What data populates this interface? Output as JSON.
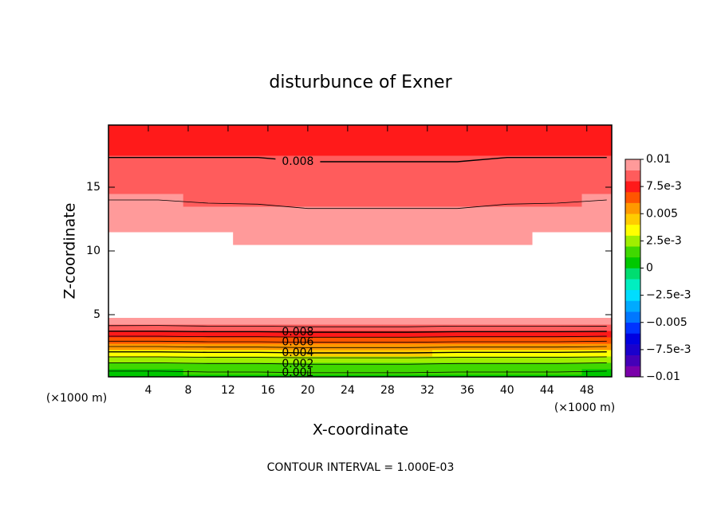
{
  "chart_data": {
    "type": "contour",
    "title": "disturbunce of Exner",
    "xlabel": "X-coordinate",
    "ylabel": "Z-coordinate",
    "x_unit_left": "(×1000 m)",
    "x_unit_right": "(×1000 m)",
    "footer": "CONTOUR INTERVAL = 1.000E-03",
    "xlim": [
      0,
      50.5
    ],
    "ylim": [
      0.125,
      19.875
    ],
    "xticks": [
      4,
      8,
      12,
      16,
      20,
      24,
      28,
      32,
      36,
      40,
      44,
      48
    ],
    "yticks": [
      5,
      10,
      15
    ],
    "x": [
      0,
      5,
      10,
      15,
      20,
      25,
      30,
      35,
      40,
      45,
      50
    ],
    "y": [
      0.125,
      0.5,
      1,
      1.5,
      2,
      2.5,
      3,
      3.5,
      4,
      4.5,
      5,
      7,
      9,
      10,
      11,
      12,
      13,
      14,
      15,
      16,
      17,
      18,
      19,
      19.875
    ],
    "values": [
      [
        0.0003,
        0.0003,
        0.0003,
        0.0004,
        0.0004,
        0.0004,
        0.0004,
        0.0003,
        0.0003,
        0.0003,
        0.0003
      ],
      [
        0.0009,
        0.0009,
        0.001,
        0.001,
        0.0011,
        0.0011,
        0.0011,
        0.001,
        0.001,
        0.001,
        0.0009
      ],
      [
        0.0016,
        0.0016,
        0.0017,
        0.0017,
        0.0018,
        0.0018,
        0.0018,
        0.0017,
        0.0017,
        0.0017,
        0.0016
      ],
      [
        0.0025,
        0.0025,
        0.0026,
        0.0026,
        0.0027,
        0.0027,
        0.0027,
        0.0026,
        0.0026,
        0.0026,
        0.0025
      ],
      [
        0.0038,
        0.0038,
        0.0039,
        0.0039,
        0.004,
        0.004,
        0.004,
        0.0039,
        0.0039,
        0.0039,
        0.0038
      ],
      [
        0.005,
        0.005,
        0.0051,
        0.0051,
        0.0052,
        0.0052,
        0.0052,
        0.0051,
        0.0051,
        0.0051,
        0.005
      ],
      [
        0.0062,
        0.0062,
        0.0063,
        0.0063,
        0.0064,
        0.0064,
        0.0064,
        0.0063,
        0.0063,
        0.0063,
        0.0062
      ],
      [
        0.0075,
        0.0075,
        0.0076,
        0.0076,
        0.0077,
        0.0077,
        0.0077,
        0.0076,
        0.0076,
        0.0076,
        0.0075
      ],
      [
        0.0087,
        0.0087,
        0.0088,
        0.0088,
        0.0089,
        0.0089,
        0.0089,
        0.0088,
        0.0088,
        0.0088,
        0.0088
      ],
      [
        0.0098,
        0.0097,
        0.0098,
        0.0098,
        0.0099,
        0.0099,
        0.0099,
        0.0098,
        0.0098,
        0.0098,
        0.0099
      ],
      [
        0.0107,
        0.0106,
        0.0107,
        0.0107,
        0.0108,
        0.0108,
        0.0108,
        0.0107,
        0.0107,
        0.0107,
        0.0106
      ],
      [
        0.013,
        0.013,
        0.013,
        0.013,
        0.013,
        0.013,
        0.013,
        0.013,
        0.013,
        0.013,
        0.013
      ],
      [
        0.013,
        0.013,
        0.013,
        0.013,
        0.013,
        0.013,
        0.013,
        0.013,
        0.013,
        0.013,
        0.013
      ],
      [
        0.0118,
        0.0117,
        0.0116,
        0.0115,
        0.0114,
        0.0113,
        0.0113,
        0.0114,
        0.0115,
        0.0117,
        0.0119
      ],
      [
        0.0102,
        0.0101,
        0.01,
        0.0099,
        0.0098,
        0.0097,
        0.0097,
        0.0098,
        0.0099,
        0.0101,
        0.0103
      ],
      [
        0.0098,
        0.0097,
        0.0096,
        0.0096,
        0.0095,
        0.0095,
        0.0095,
        0.0095,
        0.0096,
        0.0097,
        0.0098
      ],
      [
        0.0094,
        0.0093,
        0.0093,
        0.0092,
        0.0091,
        0.0091,
        0.0091,
        0.0091,
        0.0092,
        0.0093,
        0.0094
      ],
      [
        0.009,
        0.009,
        0.0089,
        0.0089,
        0.0088,
        0.0088,
        0.0088,
        0.0088,
        0.0089,
        0.0089,
        0.009
      ],
      [
        0.0087,
        0.0087,
        0.0086,
        0.0086,
        0.0086,
        0.0085,
        0.0085,
        0.0086,
        0.0086,
        0.0086,
        0.0087
      ],
      [
        0.0084,
        0.0084,
        0.0084,
        0.0083,
        0.0083,
        0.0083,
        0.0083,
        0.0083,
        0.0083,
        0.0084,
        0.0084
      ],
      [
        0.0081,
        0.0081,
        0.0081,
        0.0081,
        0.008,
        0.008,
        0.008,
        0.008,
        0.0081,
        0.0081,
        0.0081
      ],
      [
        0.0078,
        0.0078,
        0.0078,
        0.0078,
        0.0078,
        0.0078,
        0.0078,
        0.0078,
        0.0078,
        0.0078,
        0.0078
      ],
      [
        0.0076,
        0.0076,
        0.0076,
        0.0076,
        0.0076,
        0.0076,
        0.0076,
        0.0076,
        0.0076,
        0.0076,
        0.0076
      ],
      [
        0.0074,
        0.0074,
        0.0074,
        0.0074,
        0.0074,
        0.0074,
        0.0074,
        0.0074,
        0.0074,
        0.0074,
        0.0074
      ]
    ],
    "levels": [
      -0.01,
      -0.009,
      -0.008,
      -0.007,
      -0.006,
      -0.005,
      -0.004,
      -0.003,
      -0.002,
      -0.001,
      0,
      0.001,
      0.002,
      0.003,
      0.004,
      0.005,
      0.006,
      0.007,
      0.008,
      0.009,
      0.01
    ],
    "colors": [
      "#7a00aa",
      "#4400b8",
      "#1a00cc",
      "#0000e0",
      "#0033ff",
      "#0077ff",
      "#00aaff",
      "#00ddff",
      "#00eec0",
      "#00dd70",
      "#00c800",
      "#40d800",
      "#a0ee00",
      "#ffff00",
      "#ffcc00",
      "#ff9900",
      "#ff5500",
      "#ff1a1a",
      "#ff5c5c",
      "#ff9a9a"
    ],
    "contour_levels": [
      0.001,
      0.002,
      0.003,
      0.004,
      0.005,
      0.006,
      0.007,
      0.008,
      0.009
    ],
    "colorbar_ticks": [
      0.01,
      {
        "value": 0.0075,
        "label": "7.5e-3"
      },
      0.005,
      {
        "value": 0.0025,
        "label": "2.5e-3"
      },
      0,
      {
        "value": -0.0025,
        "label": "−2.5e-3"
      },
      {
        "value": -0.005,
        "label": "−0.005"
      },
      {
        "value": -0.0075,
        "label": "−7.5e-3"
      },
      {
        "value": -0.01,
        "label": "−0.01"
      }
    ]
  }
}
